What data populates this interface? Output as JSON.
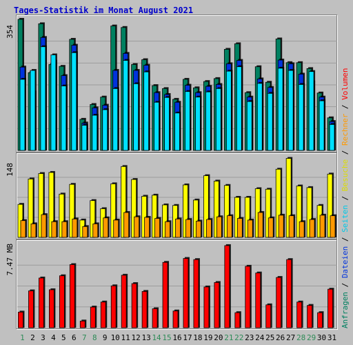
{
  "title": "Tages-Statistik im Monat August 2021",
  "colors": {
    "anfragen": "#008060",
    "dateien": "#0033dd",
    "seiten": "#00e0ff",
    "besuche": "#ffff00",
    "rechner": "#ff9900",
    "volumen": "#ff0000",
    "weekday_label": "#000000",
    "weekend_label": "#2e8b57",
    "background": "#c0c0c0"
  },
  "legend_right": [
    {
      "text": "Anfragen",
      "color": "#008060"
    },
    {
      "text": "Dateien",
      "color": "#0033dd"
    },
    {
      "text": "Seiten",
      "color": "#00c8e8"
    },
    {
      "text": "Besuche",
      "color": "#dcdc00"
    },
    {
      "text": "Rechner",
      "color": "#ff9900"
    },
    {
      "text": "Volumen",
      "color": "#ff0000"
    }
  ],
  "chart_data": [
    {
      "type": "bar",
      "ymax_label": "354",
      "ymax": 354,
      "categories": [
        "1",
        "2",
        "3",
        "4",
        "5",
        "6",
        "7",
        "8",
        "9",
        "10",
        "11",
        "12",
        "13",
        "14",
        "15",
        "16",
        "17",
        "18",
        "19",
        "20",
        "21",
        "22",
        "23",
        "24",
        "25",
        "26",
        "27",
        "28",
        "29",
        "30",
        "31"
      ],
      "weekend_days": [
        "1",
        "7",
        "8",
        "14",
        "15",
        "21",
        "22",
        "28",
        "29"
      ],
      "series": [
        {
          "name": "Anfragen",
          "values": [
            354,
            210,
            342,
            232,
            227,
            300,
            84,
            124,
            144,
            336,
            332,
            232,
            245,
            175,
            167,
            138,
            192,
            169,
            186,
            194,
            273,
            288,
            156,
            226,
            184,
            301,
            237,
            237,
            221,
            155,
            88
          ]
        },
        {
          "name": "Dateien",
          "values": [
            225,
            158,
            305,
            241,
            202,
            284,
            74,
            115,
            122,
            216,
            262,
            216,
            230,
            156,
            151,
            130,
            176,
            156,
            173,
            178,
            234,
            243,
            144,
            193,
            170,
            244,
            234,
            206,
            185,
            144,
            78
          ]
        },
        {
          "name": "Seiten",
          "values": [
            192,
            216,
            280,
            258,
            174,
            264,
            68,
            95,
            110,
            167,
            243,
            180,
            212,
            130,
            143,
            101,
            159,
            144,
            158,
            167,
            214,
            226,
            132,
            181,
            154,
            222,
            216,
            178,
            213,
            134,
            70
          ]
        }
      ]
    },
    {
      "type": "bar",
      "ymax_label": "148",
      "ymax": 148,
      "series": [
        {
          "name": "Besuche",
          "values": [
            61,
            108,
            118,
            120,
            80,
            98,
            32,
            68,
            53,
            99,
            131,
            107,
            76,
            78,
            60,
            59,
            97,
            69,
            114,
            104,
            96,
            74,
            74,
            90,
            89,
            126,
            146,
            95,
            92,
            59,
            117
          ]
        },
        {
          "name": "Rechner",
          "values": [
            31,
            25,
            42,
            29,
            29,
            34,
            20,
            25,
            36,
            32,
            46,
            38,
            37,
            35,
            29,
            34,
            33,
            30,
            33,
            38,
            40,
            35,
            32,
            46,
            36,
            41,
            40,
            29,
            33,
            41,
            40
          ]
        }
      ]
    },
    {
      "type": "bar",
      "ymax_label": "7.47 MB",
      "ymax": 7.47,
      "series": [
        {
          "name": "Volumen",
          "values": [
            1.4,
            3.3,
            4.45,
            3.4,
            4.65,
            5.65,
            0.6,
            1.85,
            2.3,
            3.75,
            4.7,
            3.95,
            3.25,
            1.7,
            5.85,
            1.5,
            6.2,
            6.1,
            3.65,
            4.05,
            7.35,
            1.35,
            5.5,
            4.9,
            2.05,
            4.5,
            6.1,
            2.3,
            2.0,
            1.35,
            3.45
          ]
        }
      ]
    }
  ]
}
